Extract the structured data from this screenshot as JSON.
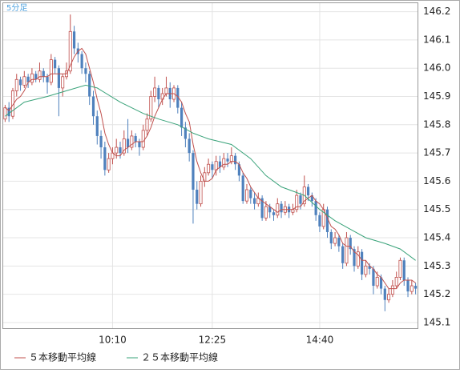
{
  "chart_data": {
    "type": "candlestick",
    "label": "5分足",
    "up_color": "#c0504d",
    "down_color": "#4f81bd",
    "ylim": [
      145.08,
      146.23
    ],
    "yticks": [
      145.1,
      145.2,
      145.3,
      145.4,
      145.5,
      145.6,
      145.7,
      145.8,
      145.9,
      {
        "value": 146,
        "label": "146.0"
      },
      146.1,
      146.2
    ],
    "xlim": [
      -0.5,
      107.5
    ],
    "xticks": [
      {
        "value": 28,
        "label": "10:10"
      },
      {
        "value": 54,
        "label": "12:25"
      },
      {
        "value": 82,
        "label": "14:40"
      }
    ],
    "grid": true,
    "candles": [
      [
        145.82,
        145.87,
        145.81,
        145.86
      ],
      [
        145.86,
        145.88,
        145.81,
        145.83
      ],
      [
        145.83,
        145.93,
        145.82,
        145.92
      ],
      [
        145.92,
        145.98,
        145.9,
        145.96
      ],
      [
        145.96,
        145.97,
        145.92,
        145.94
      ],
      [
        145.94,
        145.99,
        145.93,
        145.97
      ],
      [
        145.97,
        145.98,
        145.93,
        145.95
      ],
      [
        145.95,
        146.0,
        145.94,
        145.98
      ],
      [
        145.98,
        145.99,
        145.95,
        145.96
      ],
      [
        145.96,
        146.02,
        145.95,
        145.99
      ],
      [
        145.99,
        146.0,
        145.95,
        145.97
      ],
      [
        145.97,
        145.98,
        145.91,
        145.95
      ],
      [
        145.95,
        146.05,
        145.94,
        146.03
      ],
      [
        146.03,
        146.04,
        145.98,
        146.0
      ],
      [
        146.0,
        146.01,
        145.83,
        145.93
      ],
      [
        145.93,
        145.98,
        145.9,
        145.97
      ],
      [
        145.97,
        146.02,
        145.96,
        145.99
      ],
      [
        145.99,
        146.19,
        145.98,
        146.13
      ],
      [
        146.13,
        146.15,
        146.05,
        146.07
      ],
      [
        146.07,
        146.09,
        146.02,
        146.05
      ],
      [
        146.05,
        146.06,
        145.98,
        146.0
      ],
      [
        146.0,
        146.02,
        145.95,
        145.98
      ],
      [
        145.98,
        145.99,
        145.87,
        145.9
      ],
      [
        145.9,
        145.92,
        145.8,
        145.83
      ],
      [
        145.83,
        145.85,
        145.73,
        145.76
      ],
      [
        145.76,
        145.78,
        145.68,
        145.72
      ],
      [
        145.72,
        145.74,
        145.62,
        145.64
      ],
      [
        145.64,
        145.7,
        145.63,
        145.68
      ],
      [
        145.68,
        145.72,
        145.66,
        145.7
      ],
      [
        145.7,
        145.75,
        145.68,
        145.72
      ],
      [
        145.72,
        145.74,
        145.68,
        145.7
      ],
      [
        145.7,
        145.78,
        145.69,
        145.75
      ],
      [
        145.75,
        145.82,
        145.7,
        145.72
      ],
      [
        145.72,
        145.78,
        145.71,
        145.76
      ],
      [
        145.76,
        145.77,
        145.72,
        145.74
      ],
      [
        145.74,
        145.75,
        145.69,
        145.72
      ],
      [
        145.72,
        145.8,
        145.71,
        145.78
      ],
      [
        145.78,
        145.84,
        145.76,
        145.82
      ],
      [
        145.82,
        145.92,
        145.81,
        145.9
      ],
      [
        145.9,
        145.97,
        145.88,
        145.93
      ],
      [
        145.93,
        145.94,
        145.86,
        145.89
      ],
      [
        145.89,
        145.93,
        145.87,
        145.91
      ],
      [
        145.91,
        145.97,
        145.9,
        145.93
      ],
      [
        145.93,
        145.95,
        145.86,
        145.89
      ],
      [
        145.89,
        145.94,
        145.88,
        145.93
      ],
      [
        145.93,
        145.94,
        145.84,
        145.86
      ],
      [
        145.86,
        145.88,
        145.76,
        145.79
      ],
      [
        145.79,
        145.81,
        145.72,
        145.75
      ],
      [
        145.75,
        145.77,
        145.67,
        145.7
      ],
      [
        145.7,
        145.71,
        145.45,
        145.57
      ],
      [
        145.57,
        145.6,
        145.5,
        145.52
      ],
      [
        145.52,
        145.62,
        145.51,
        145.6
      ],
      [
        145.6,
        145.65,
        145.58,
        145.63
      ],
      [
        145.63,
        145.68,
        145.62,
        145.66
      ],
      [
        145.66,
        145.67,
        145.61,
        145.64
      ],
      [
        145.64,
        145.69,
        145.62,
        145.67
      ],
      [
        145.67,
        145.69,
        145.63,
        145.65
      ],
      [
        145.65,
        145.7,
        145.64,
        145.68
      ],
      [
        145.68,
        145.7,
        145.65,
        145.67
      ],
      [
        145.67,
        145.72,
        145.66,
        145.69
      ],
      [
        145.69,
        145.7,
        145.64,
        145.66
      ],
      [
        145.66,
        145.67,
        145.6,
        145.62
      ],
      [
        145.62,
        145.63,
        145.52,
        145.53
      ],
      [
        145.53,
        145.59,
        145.52,
        145.57
      ],
      [
        145.57,
        145.58,
        145.52,
        145.54
      ],
      [
        145.54,
        145.56,
        145.5,
        145.52
      ],
      [
        145.52,
        145.56,
        145.51,
        145.54
      ],
      [
        145.54,
        145.55,
        145.46,
        145.47
      ],
      [
        145.47,
        145.53,
        145.46,
        145.51
      ],
      [
        145.51,
        145.52,
        145.47,
        145.49
      ],
      [
        145.49,
        145.5,
        145.46,
        145.48
      ],
      [
        145.48,
        145.54,
        145.47,
        145.52
      ],
      [
        145.52,
        145.53,
        145.47,
        145.49
      ],
      [
        145.49,
        145.53,
        145.48,
        145.51
      ],
      [
        145.51,
        145.52,
        145.47,
        145.49
      ],
      [
        145.49,
        145.52,
        145.48,
        145.5
      ],
      [
        145.5,
        145.57,
        145.49,
        145.55
      ],
      [
        145.55,
        145.56,
        145.5,
        145.52
      ],
      [
        145.52,
        145.62,
        145.51,
        145.58
      ],
      [
        145.58,
        145.59,
        145.53,
        145.55
      ],
      [
        145.55,
        145.56,
        145.51,
        145.53
      ],
      [
        145.53,
        145.54,
        145.46,
        145.48
      ],
      [
        145.48,
        145.49,
        145.42,
        145.44
      ],
      [
        145.44,
        145.52,
        145.43,
        145.5
      ],
      [
        145.5,
        145.51,
        145.4,
        145.42
      ],
      [
        145.42,
        145.43,
        145.36,
        145.38
      ],
      [
        145.38,
        145.42,
        145.37,
        145.4
      ],
      [
        145.4,
        145.41,
        145.35,
        145.37
      ],
      [
        145.37,
        145.38,
        145.29,
        145.31
      ],
      [
        145.31,
        145.42,
        145.3,
        145.4
      ],
      [
        145.4,
        145.41,
        145.34,
        145.36
      ],
      [
        145.36,
        145.37,
        145.28,
        145.3
      ],
      [
        145.3,
        145.37,
        145.29,
        145.35
      ],
      [
        145.35,
        145.36,
        145.25,
        145.27
      ],
      [
        145.27,
        145.32,
        145.26,
        145.3
      ],
      [
        145.3,
        145.31,
        145.27,
        145.29
      ],
      [
        145.29,
        145.3,
        145.2,
        145.23
      ],
      [
        145.23,
        145.28,
        145.22,
        145.26
      ],
      [
        145.26,
        145.27,
        145.2,
        145.22
      ],
      [
        145.22,
        145.23,
        145.14,
        145.18
      ],
      [
        145.18,
        145.22,
        145.17,
        145.2
      ],
      [
        145.2,
        145.25,
        145.19,
        145.23
      ],
      [
        145.23,
        145.28,
        145.22,
        145.26
      ],
      [
        145.26,
        145.33,
        145.25,
        145.32
      ],
      [
        145.32,
        145.33,
        145.23,
        145.25
      ],
      [
        145.25,
        145.26,
        145.19,
        145.21
      ],
      [
        145.21,
        145.25,
        145.2,
        145.23
      ],
      [
        145.23,
        145.24,
        145.2,
        145.22
      ]
    ],
    "series": [
      {
        "name": "５本移動平均線",
        "color": "#c0504d",
        "values": [
          145.86,
          145.85,
          145.87,
          145.89,
          145.9,
          145.92,
          145.95,
          145.96,
          145.96,
          145.97,
          145.97,
          145.97,
          145.98,
          145.98,
          145.98,
          145.98,
          145.98,
          146.01,
          146.04,
          146.06,
          146.07,
          146.05,
          146.0,
          145.95,
          145.89,
          145.84,
          145.77,
          145.73,
          145.7,
          145.69,
          145.69,
          145.71,
          145.72,
          145.73,
          145.74,
          145.74,
          145.74,
          145.76,
          145.79,
          145.83,
          145.86,
          145.89,
          145.91,
          145.91,
          145.91,
          145.9,
          145.88,
          145.84,
          145.81,
          145.73,
          145.67,
          145.63,
          145.6,
          145.6,
          145.61,
          145.64,
          145.65,
          145.66,
          145.66,
          145.67,
          145.67,
          145.66,
          145.63,
          145.61,
          145.58,
          145.56,
          145.54,
          145.53,
          145.52,
          145.51,
          145.5,
          145.49,
          145.5,
          145.5,
          145.5,
          145.5,
          145.51,
          145.51,
          145.53,
          145.54,
          145.55,
          145.53,
          145.52,
          145.5,
          145.47,
          145.44,
          145.43,
          145.41,
          145.38,
          145.37,
          145.37,
          145.35,
          145.34,
          145.32,
          145.32,
          145.3,
          145.29,
          145.27,
          145.26,
          145.24,
          145.22,
          145.22,
          145.22,
          145.24,
          145.25,
          145.25,
          145.25,
          145.24
        ]
      },
      {
        "name": "２５本移動平均線",
        "color": "#3aa37a",
        "x": [
          0,
          5,
          11,
          16,
          21,
          24,
          30,
          36,
          40,
          45,
          49,
          53,
          59,
          64,
          68,
          72,
          78,
          82,
          86,
          90,
          94,
          99,
          103,
          107
        ],
        "values": [
          145.83,
          145.88,
          145.9,
          145.92,
          145.94,
          145.93,
          145.88,
          145.84,
          145.82,
          145.8,
          145.77,
          145.75,
          145.73,
          145.68,
          145.62,
          145.58,
          145.55,
          145.5,
          145.46,
          145.43,
          145.4,
          145.38,
          145.36,
          145.32
        ]
      }
    ]
  }
}
